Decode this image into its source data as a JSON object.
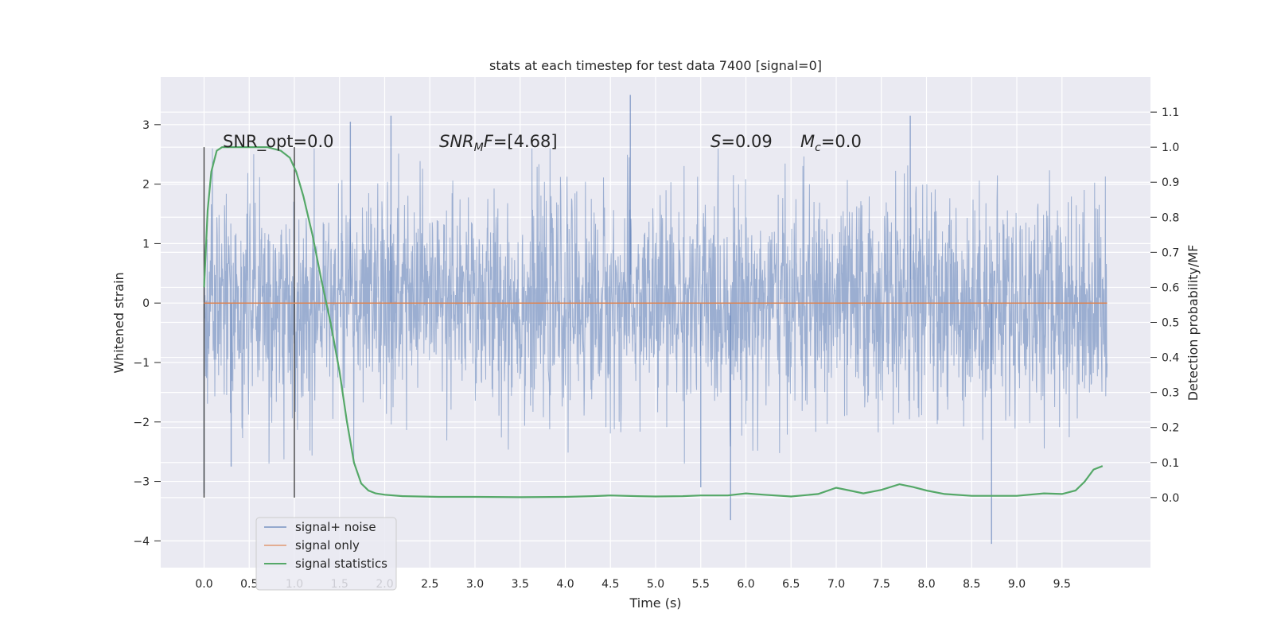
{
  "chart_data": {
    "type": "line",
    "title": "stats at each timestep for test data 7400 [signal=0]",
    "xlabel": "Time (s)",
    "ylabel": "Whitened strain",
    "ylabel_right": "Detection probability/MF",
    "xlim": [
      -0.48,
      10.48
    ],
    "ylim": [
      -4.45,
      3.8
    ],
    "ylim_right": [
      -0.2,
      1.2
    ],
    "x_ticks": [
      "0.0",
      "0.5",
      "1.0",
      "1.5",
      "2.0",
      "2.5",
      "3.0",
      "3.5",
      "4.0",
      "4.5",
      "5.0",
      "5.5",
      "6.0",
      "6.5",
      "7.0",
      "7.5",
      "8.0",
      "8.5",
      "9.0",
      "9.5"
    ],
    "y_ticks": [
      "3",
      "2",
      "1",
      "0",
      "−1",
      "−2",
      "−3",
      "−4"
    ],
    "y_ticks_right": [
      "1.1",
      "1.0",
      "0.9",
      "0.8",
      "0.7",
      "0.6",
      "0.5",
      "0.4",
      "0.3",
      "0.2",
      "0.1",
      "0.0"
    ],
    "grid": true,
    "legend_position": "lower-left",
    "annotations": {
      "snr_opt": "SNR_opt=0.0",
      "snr_mf_italic": "SNR",
      "snr_mf_sub": "M",
      "snr_mf_italic2": "F",
      "snr_mf_rest": "=[4.68]",
      "s_italic": "S",
      "s_rest": "=0.09",
      "mc_italic": "M",
      "mc_sub": "c",
      "mc_rest": "=0.0"
    },
    "vertical_markers": [
      0.0,
      1.0
    ],
    "series": [
      {
        "name": "signal+ noise",
        "color": "#4c72b0",
        "axis": "left",
        "kind": "noise",
        "x_range": [
          0.0,
          10.0
        ],
        "typical_abs": 0.9,
        "envelope": [
          -2.7,
          2.6
        ],
        "spikes": [
          {
            "x": 0.0,
            "y": -3.2
          },
          {
            "x": 0.3,
            "y": -2.75
          },
          {
            "x": 1.62,
            "y": 3.05
          },
          {
            "x": 2.07,
            "y": 3.15
          },
          {
            "x": 4.72,
            "y": 3.5
          },
          {
            "x": 5.83,
            "y": -3.65
          },
          {
            "x": 7.82,
            "y": 3.15
          },
          {
            "x": 8.72,
            "y": -4.05
          },
          {
            "x": 5.5,
            "y": -3.1
          }
        ]
      },
      {
        "name": "signal only",
        "color": "#dd8452",
        "axis": "left",
        "x": [
          0.0,
          10.0
        ],
        "y": [
          0.0,
          0.0
        ]
      },
      {
        "name": "signal statistics",
        "color": "#55a868",
        "axis": "right",
        "x": [
          0.0,
          0.04,
          0.08,
          0.14,
          0.2,
          0.3,
          0.5,
          0.7,
          0.85,
          0.95,
          1.02,
          1.1,
          1.2,
          1.3,
          1.4,
          1.5,
          1.58,
          1.66,
          1.74,
          1.82,
          1.9,
          2.0,
          2.2,
          2.6,
          3.0,
          3.5,
          4.0,
          4.3,
          4.5,
          4.8,
          5.0,
          5.3,
          5.5,
          5.8,
          6.0,
          6.2,
          6.5,
          6.8,
          7.0,
          7.15,
          7.3,
          7.5,
          7.7,
          7.85,
          8.0,
          8.2,
          8.5,
          9.0,
          9.3,
          9.5,
          9.65,
          9.75,
          9.85,
          9.95
        ],
        "y": [
          0.6,
          0.82,
          0.93,
          0.99,
          1.0,
          1.0,
          1.0,
          1.0,
          0.99,
          0.97,
          0.93,
          0.86,
          0.75,
          0.62,
          0.5,
          0.36,
          0.22,
          0.1,
          0.04,
          0.02,
          0.012,
          0.008,
          0.004,
          0.002,
          0.002,
          0.001,
          0.002,
          0.004,
          0.006,
          0.004,
          0.003,
          0.004,
          0.006,
          0.006,
          0.012,
          0.008,
          0.003,
          0.01,
          0.028,
          0.02,
          0.012,
          0.022,
          0.038,
          0.03,
          0.02,
          0.01,
          0.005,
          0.005,
          0.012,
          0.01,
          0.02,
          0.045,
          0.08,
          0.09
        ]
      }
    ]
  }
}
